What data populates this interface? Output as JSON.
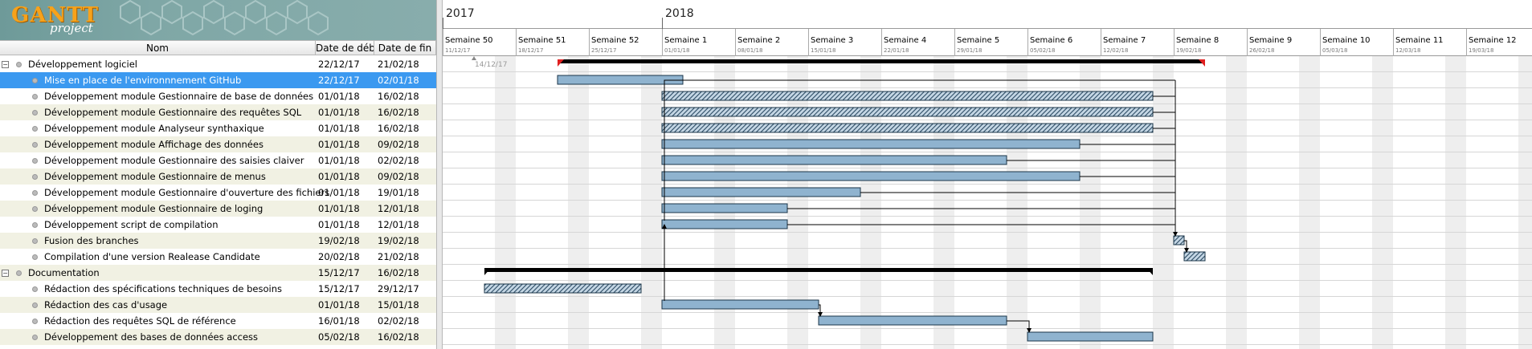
{
  "app": {
    "logo_text": "GANTT",
    "logo_sub": "project"
  },
  "table": {
    "columns": {
      "name": "Nom",
      "start": "Date de déb...",
      "end": "Date de fin"
    },
    "rows": [
      {
        "name": "Développement logiciel",
        "start": "22/12/17",
        "end": "21/02/18",
        "group": true
      },
      {
        "name": "Mise en place de l'environnnement GitHub",
        "start": "22/12/17",
        "end": "02/01/18",
        "selected": true
      },
      {
        "name": "Développement module Gestionnaire de base de données",
        "start": "01/01/18",
        "end": "16/02/18"
      },
      {
        "name": "Développement module Gestionnaire des requêtes SQL",
        "start": "01/01/18",
        "end": "16/02/18"
      },
      {
        "name": "Développement module Analyseur synthaxique",
        "start": "01/01/18",
        "end": "16/02/18"
      },
      {
        "name": "Développement module Affichage des données",
        "start": "01/01/18",
        "end": "09/02/18"
      },
      {
        "name": "Développement module Gestionnaire des saisies claiver",
        "start": "01/01/18",
        "end": "02/02/18"
      },
      {
        "name": "Développement module Gestionnaire de menus",
        "start": "01/01/18",
        "end": "09/02/18"
      },
      {
        "name": "Développement module Gestionnaire d'ouverture des fichiers",
        "start": "01/01/18",
        "end": "19/01/18"
      },
      {
        "name": "Développement module Gestionnaire de loging",
        "start": "01/01/18",
        "end": "12/01/18"
      },
      {
        "name": "Développement script de compilation",
        "start": "01/01/18",
        "end": "12/01/18"
      },
      {
        "name": "Fusion des branches",
        "start": "19/02/18",
        "end": "19/02/18"
      },
      {
        "name": "Compilation d'une version Realease Candidate",
        "start": "20/02/18",
        "end": "21/02/18"
      },
      {
        "name": "Documentation",
        "start": "15/12/17",
        "end": "16/02/18",
        "group": true
      },
      {
        "name": "Rédaction des spécifications techniques de besoins",
        "start": "15/12/17",
        "end": "29/12/17"
      },
      {
        "name": "Rédaction des cas d'usage",
        "start": "01/01/18",
        "end": "15/01/18"
      },
      {
        "name": "Rédaction des requêtes SQL de référence",
        "start": "16/01/18",
        "end": "02/02/18"
      },
      {
        "name": "Développement des bases de données access",
        "start": "05/02/18",
        "end": "16/02/18"
      }
    ]
  },
  "timeline": {
    "years": [
      {
        "label": "2017",
        "week": 0
      },
      {
        "label": "2018",
        "week": 3
      }
    ],
    "weeks": [
      {
        "label": "Semaine 50",
        "date": "11/12/17"
      },
      {
        "label": "Semaine 51",
        "date": "18/12/17"
      },
      {
        "label": "Semaine 52",
        "date": "25/12/17"
      },
      {
        "label": "Semaine 1",
        "date": "01/01/18"
      },
      {
        "label": "Semaine 2",
        "date": "08/01/18"
      },
      {
        "label": "Semaine 3",
        "date": "15/01/18"
      },
      {
        "label": "Semaine 4",
        "date": "22/01/18"
      },
      {
        "label": "Semaine 5",
        "date": "29/01/18"
      },
      {
        "label": "Semaine 6",
        "date": "05/02/18"
      },
      {
        "label": "Semaine 7",
        "date": "12/02/18"
      },
      {
        "label": "Semaine 8",
        "date": "19/02/18"
      },
      {
        "label": "Semaine 9",
        "date": "26/02/18"
      },
      {
        "label": "Semaine 10",
        "date": "05/03/18"
      },
      {
        "label": "Semaine 11",
        "date": "12/03/18"
      },
      {
        "label": "Semaine 12",
        "date": "19/03/18"
      }
    ],
    "today_label": "14/12/17",
    "colors": {
      "task": "#8fb3cf",
      "critical_hatch": "#2b4a63",
      "summary": "#000000",
      "weekend": "#eeeeee",
      "marker": "#e02020"
    }
  }
}
